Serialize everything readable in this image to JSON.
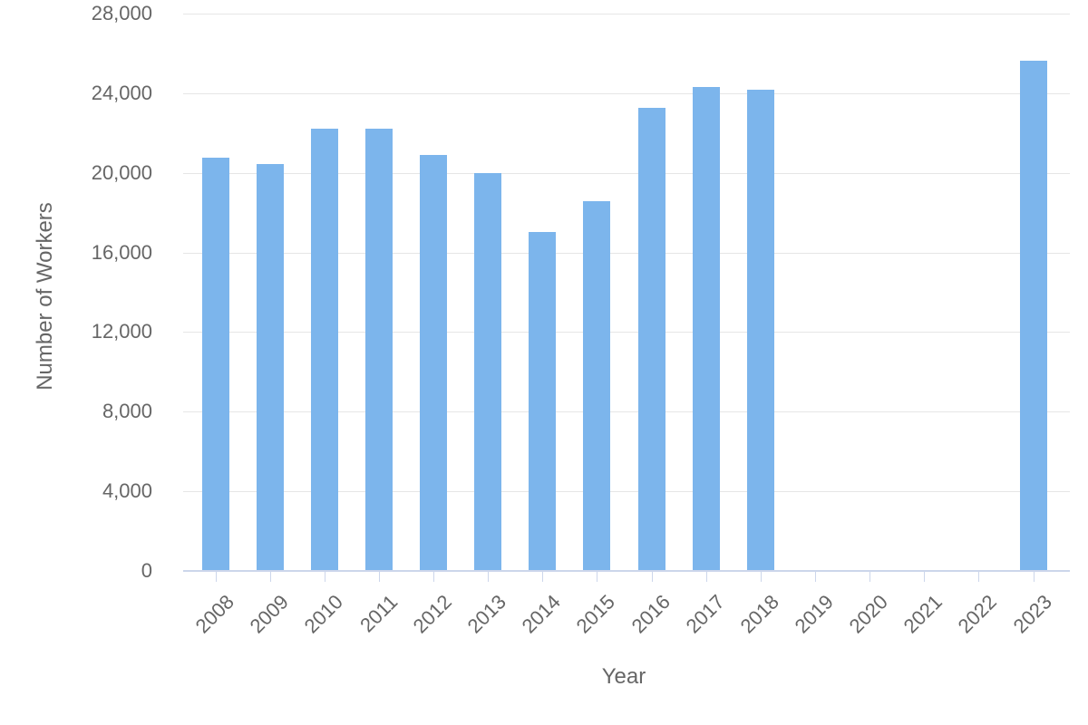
{
  "chart_data": {
    "type": "bar",
    "xlabel": "Year",
    "ylabel": "Number of Workers",
    "categories": [
      "2008",
      "2009",
      "2010",
      "2011",
      "2012",
      "2013",
      "2014",
      "2015",
      "2016",
      "2017",
      "2018",
      "2019",
      "2020",
      "2021",
      "2022",
      "2023"
    ],
    "values": [
      20750,
      20450,
      22200,
      22200,
      20900,
      20000,
      17050,
      18600,
      23250,
      24300,
      24200,
      0,
      0,
      0,
      0,
      25650
    ],
    "ylim": [
      0,
      28000
    ],
    "ytick_values": [
      0,
      4000,
      8000,
      12000,
      16000,
      20000,
      24000,
      28000
    ],
    "ytick_labels": [
      "0",
      "4,000",
      "8,000",
      "12,000",
      "16,000",
      "20,000",
      "24,000",
      "28,000"
    ],
    "grid": true,
    "legend_position": "none",
    "colors": {
      "bar": "#7cb5ec",
      "axis_line": "#ccd6eb",
      "gridline": "#e6e6e6",
      "text": "#666666"
    }
  }
}
